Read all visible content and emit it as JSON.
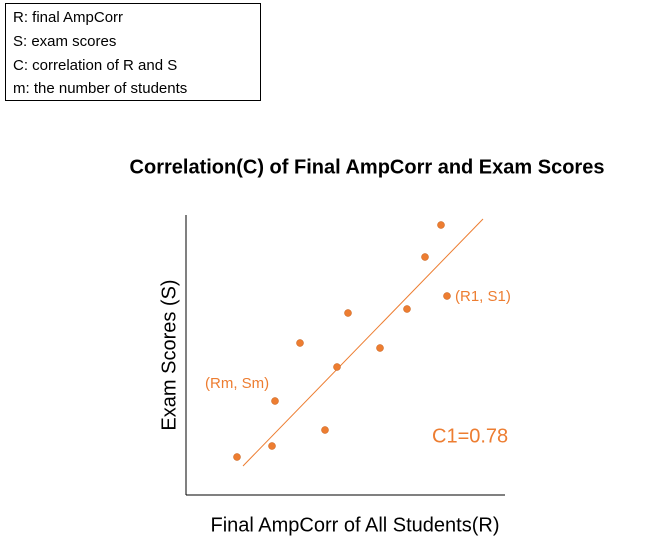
{
  "legend": {
    "lines": [
      "R:  final AmpCorr",
      "S:  exam scores",
      "C: correlation of R and S",
      "m:  the number of students"
    ]
  },
  "title": "Correlation(C) of Final AmpCorr and Exam Scores",
  "y_axis_label": "Exam Scores (S)",
  "x_axis_label": "Final AmpCorr of All Students(R)",
  "annotations": {
    "first_point": "(R1, S1)",
    "last_point": "(Rm, Sm)",
    "coefficient": "C1=0.78"
  }
}
